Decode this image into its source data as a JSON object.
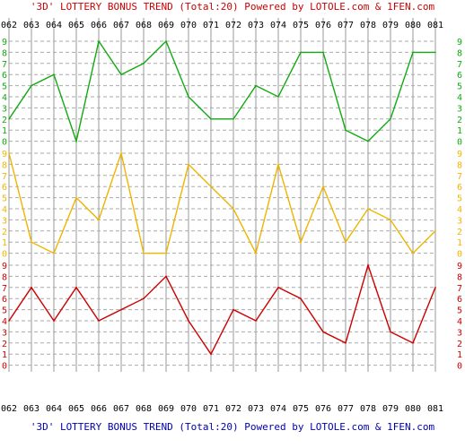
{
  "title_top": "'3D' LOTTERY BONUS TREND (Total:20)  Powered by LOTOLE.com & 1FEN.com",
  "title_bottom": "'3D' LOTTERY BONUS TREND (Total:20)  Powered by LOTOLE.com & 1FEN.com",
  "colors": {
    "title_top": "#cc0000",
    "title_bottom": "#0000aa",
    "grid_v": "#999999",
    "grid_h": "#aaaaaa",
    "axis_text": "#000000"
  },
  "chart_data": {
    "type": "line",
    "categories": [
      "062",
      "063",
      "064",
      "065",
      "066",
      "067",
      "068",
      "069",
      "070",
      "071",
      "072",
      "073",
      "074",
      "075",
      "076",
      "077",
      "078",
      "079",
      "080",
      "081"
    ],
    "panels": [
      {
        "color": "#11aa11",
        "ylim": [
          0,
          9
        ],
        "ticks": [
          "0",
          "1",
          "2",
          "3",
          "4",
          "5",
          "6",
          "7",
          "8",
          "9"
        ],
        "values": [
          2,
          5,
          6,
          0,
          9,
          6,
          7,
          9,
          4,
          2,
          2,
          5,
          4,
          8,
          8,
          1,
          0,
          2,
          8,
          8
        ]
      },
      {
        "color": "#f0b400",
        "ylim": [
          0,
          9
        ],
        "ticks": [
          "0",
          "1",
          "2",
          "3",
          "4",
          "5",
          "6",
          "7",
          "8",
          "9"
        ],
        "values": [
          9,
          1,
          0,
          5,
          3,
          9,
          0,
          0,
          8,
          6,
          4,
          0,
          8,
          1,
          6,
          1,
          4,
          3,
          0,
          2
        ]
      },
      {
        "color": "#cc0000",
        "ylim": [
          0,
          9
        ],
        "ticks": [
          "0",
          "1",
          "2",
          "3",
          "4",
          "5",
          "6",
          "7",
          "8",
          "9"
        ],
        "values": [
          4,
          7,
          4,
          7,
          4,
          5,
          6,
          8,
          4,
          1,
          5,
          4,
          7,
          6,
          3,
          2,
          9,
          3,
          2,
          7
        ]
      }
    ]
  }
}
